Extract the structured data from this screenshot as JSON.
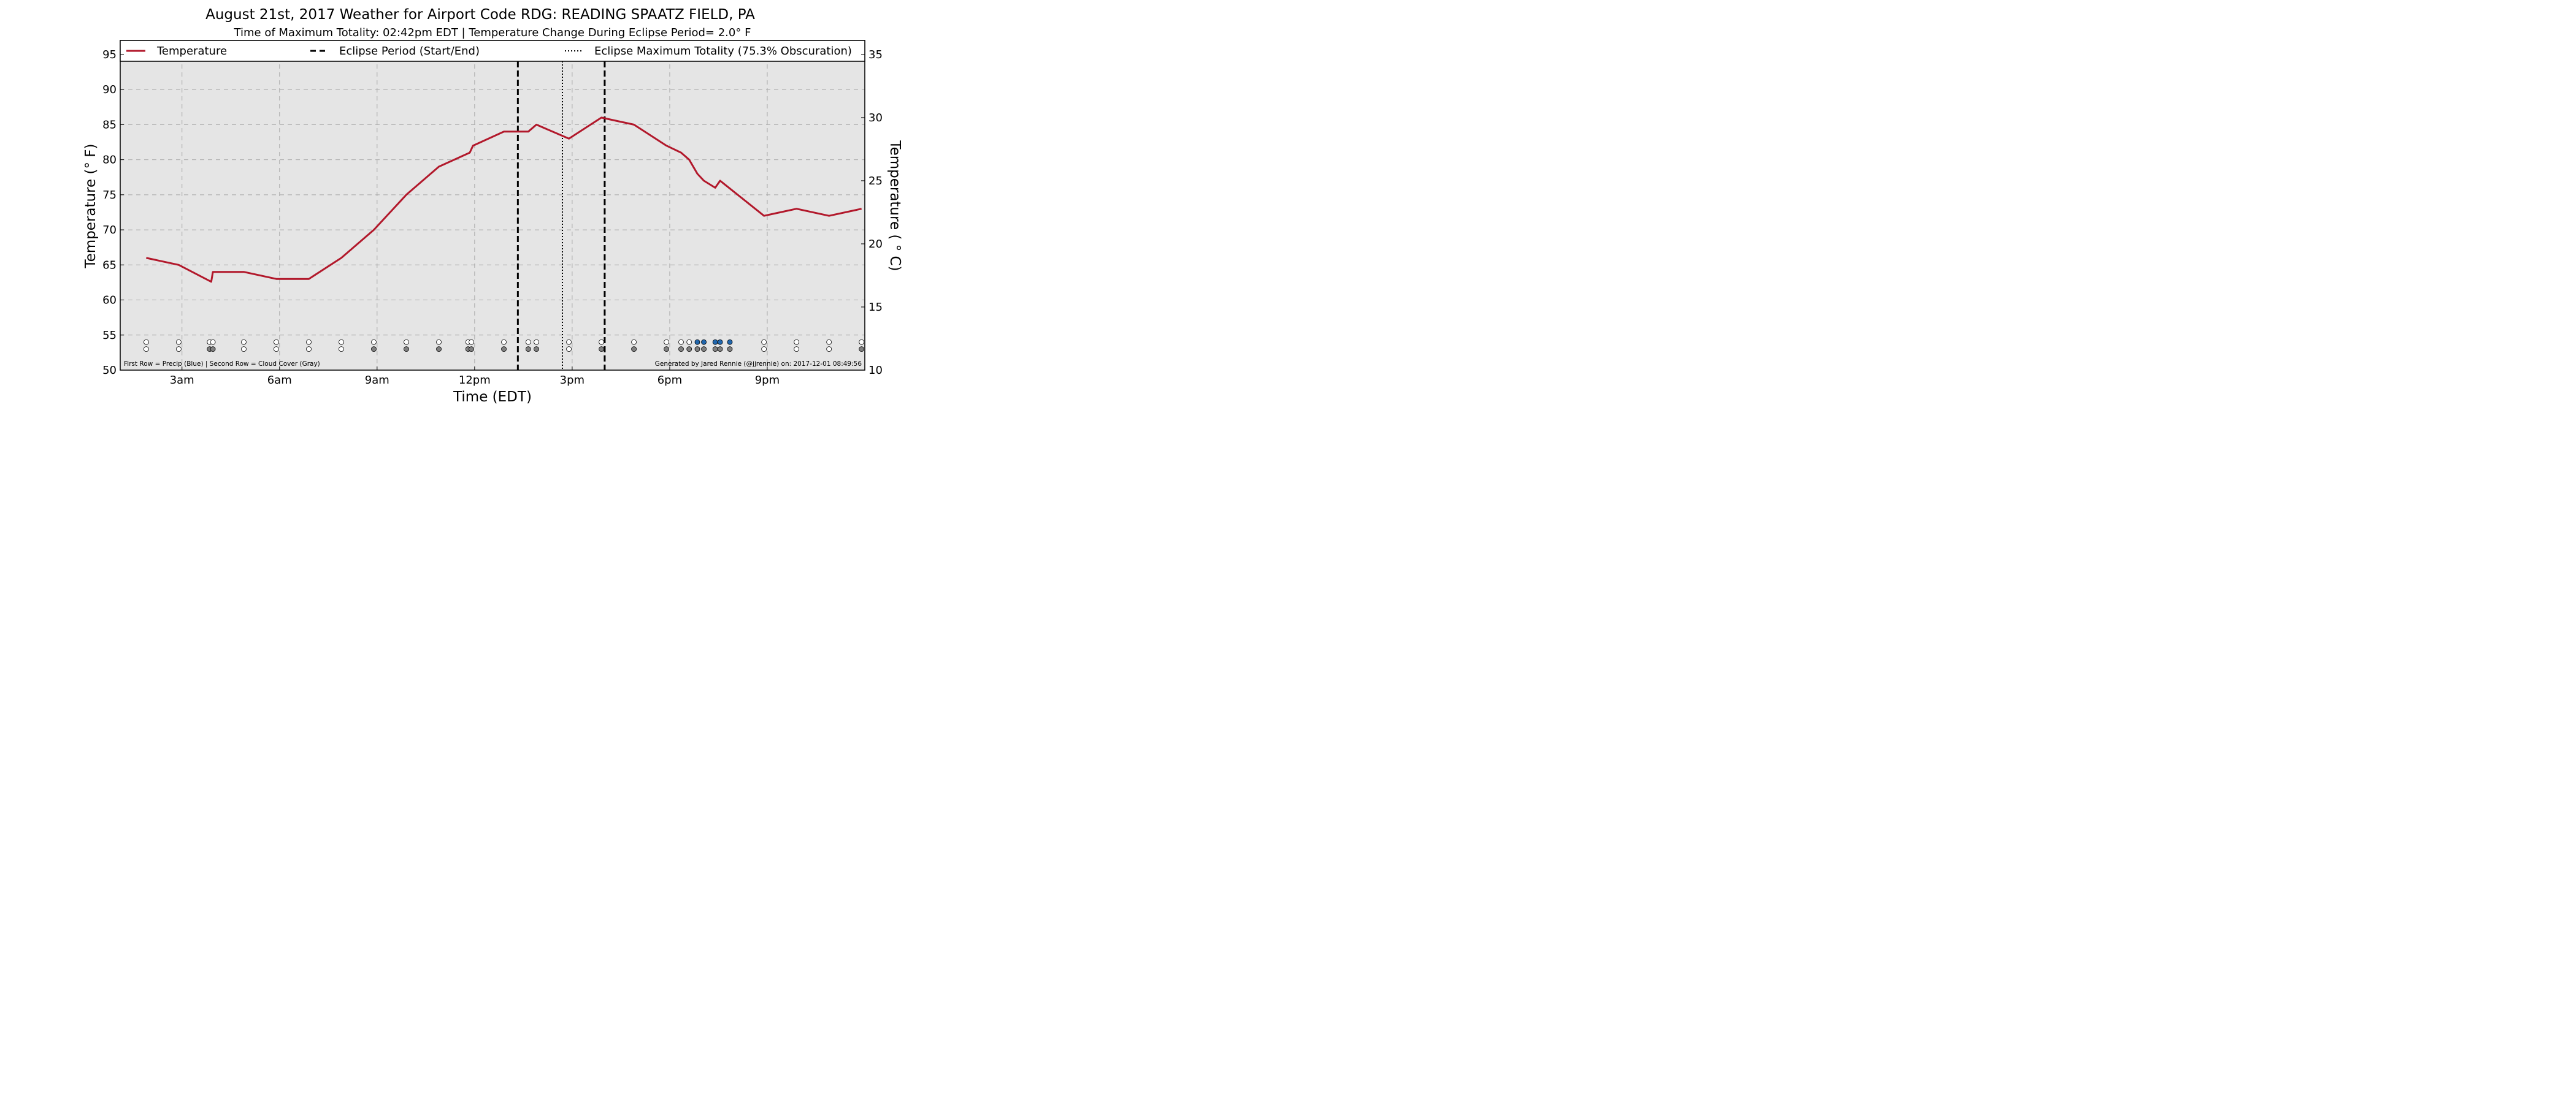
{
  "chart_data": {
    "type": "line",
    "title": "August 21st, 2017 Weather for Airport Code RDG: READING SPAATZ FIELD, PA",
    "subtitle": "Time of Maximum Totality: 02:42pm EDT | Temperature Change During Eclipse Period= 2.0° F",
    "xlabel": "Time (EDT)",
    "ylabel_left": "Temperature (° F)",
    "ylabel_right": "Temperature ( ° C)",
    "xlim": [
      1.1,
      24.0
    ],
    "ylim": [
      50,
      97
    ],
    "ylim_celsius": [
      10,
      36.11
    ],
    "x_ticks": [
      {
        "x": 3,
        "label": "3am"
      },
      {
        "x": 6,
        "label": "6am"
      },
      {
        "x": 9,
        "label": "9am"
      },
      {
        "x": 12,
        "label": "12pm"
      },
      {
        "x": 15,
        "label": "3pm"
      },
      {
        "x": 18,
        "label": "6pm"
      },
      {
        "x": 21,
        "label": "9pm"
      }
    ],
    "y_ticks": [
      50,
      55,
      60,
      65,
      70,
      75,
      80,
      85,
      90,
      95
    ],
    "y_ticks_celsius": [
      10,
      15,
      20,
      25,
      30,
      35
    ],
    "grid": true,
    "legend_placement": "top",
    "legend": [
      {
        "label": "Temperature",
        "style": "solid",
        "color": "#b2182b"
      },
      {
        "label": "Eclipse Period (Start/End)",
        "style": "dashed",
        "color": "#000000"
      },
      {
        "label": "Eclipse Maximum Totality (75.3% Obscuration)",
        "style": "dotted",
        "color": "#000000"
      }
    ],
    "series": [
      {
        "name": "Temperature",
        "color": "#b2182b",
        "points": [
          [
            1.9,
            66
          ],
          [
            2.9,
            65
          ],
          [
            3.9,
            62.6
          ],
          [
            3.95,
            64
          ],
          [
            4.9,
            64
          ],
          [
            5.9,
            63
          ],
          [
            6.9,
            63
          ],
          [
            7.9,
            66
          ],
          [
            8.9,
            70
          ],
          [
            9.9,
            75
          ],
          [
            10.9,
            79
          ],
          [
            11.85,
            81
          ],
          [
            11.95,
            82
          ],
          [
            12.9,
            84
          ],
          [
            13.65,
            84
          ],
          [
            13.9,
            85
          ],
          [
            14.9,
            83
          ],
          [
            15.9,
            86
          ],
          [
            16.9,
            85
          ],
          [
            17.9,
            82
          ],
          [
            18.35,
            81
          ],
          [
            18.6,
            80
          ],
          [
            18.85,
            78
          ],
          [
            19.05,
            77
          ],
          [
            19.4,
            76
          ],
          [
            19.55,
            77
          ],
          [
            20.9,
            72
          ],
          [
            21.9,
            73
          ],
          [
            22.9,
            72
          ],
          [
            23.9,
            73
          ]
        ]
      }
    ],
    "eclipse": {
      "start": 13.33,
      "max": 14.7,
      "end": 16.0,
      "obscuration": "75.3%"
    },
    "observations": {
      "precip_row_y": 54,
      "cloud_row_y": 53,
      "colors": {
        "empty": "#ffffff",
        "precip": "#2166ac",
        "cloud": "#808080"
      },
      "precip": [
        {
          "x": 1.9,
          "v": 0
        },
        {
          "x": 2.9,
          "v": 0
        },
        {
          "x": 3.85,
          "v": 0
        },
        {
          "x": 3.95,
          "v": 0
        },
        {
          "x": 4.9,
          "v": 0
        },
        {
          "x": 5.9,
          "v": 0
        },
        {
          "x": 6.9,
          "v": 0
        },
        {
          "x": 7.9,
          "v": 0
        },
        {
          "x": 8.9,
          "v": 0
        },
        {
          "x": 9.9,
          "v": 0
        },
        {
          "x": 10.9,
          "v": 0
        },
        {
          "x": 11.8,
          "v": 0
        },
        {
          "x": 11.9,
          "v": 0
        },
        {
          "x": 12.9,
          "v": 0
        },
        {
          "x": 13.65,
          "v": 0
        },
        {
          "x": 13.9,
          "v": 0
        },
        {
          "x": 14.9,
          "v": 0
        },
        {
          "x": 15.9,
          "v": 0
        },
        {
          "x": 16.9,
          "v": 0
        },
        {
          "x": 17.9,
          "v": 0
        },
        {
          "x": 18.35,
          "v": 0
        },
        {
          "x": 18.6,
          "v": 0
        },
        {
          "x": 18.85,
          "v": 1
        },
        {
          "x": 19.05,
          "v": 1
        },
        {
          "x": 19.4,
          "v": 1
        },
        {
          "x": 19.55,
          "v": 1
        },
        {
          "x": 19.85,
          "v": 1
        },
        {
          "x": 20.9,
          "v": 0
        },
        {
          "x": 21.9,
          "v": 0
        },
        {
          "x": 22.9,
          "v": 0
        },
        {
          "x": 23.9,
          "v": 0
        }
      ],
      "cloud": [
        {
          "x": 1.9,
          "v": 0
        },
        {
          "x": 2.9,
          "v": 0
        },
        {
          "x": 3.85,
          "v": 1
        },
        {
          "x": 3.95,
          "v": 1
        },
        {
          "x": 4.9,
          "v": 0
        },
        {
          "x": 5.9,
          "v": 0
        },
        {
          "x": 6.9,
          "v": 0
        },
        {
          "x": 7.9,
          "v": 0
        },
        {
          "x": 8.9,
          "v": 1
        },
        {
          "x": 9.9,
          "v": 1
        },
        {
          "x": 10.9,
          "v": 1
        },
        {
          "x": 11.8,
          "v": 1
        },
        {
          "x": 11.9,
          "v": 1
        },
        {
          "x": 12.9,
          "v": 1
        },
        {
          "x": 13.65,
          "v": 1
        },
        {
          "x": 13.9,
          "v": 1
        },
        {
          "x": 14.9,
          "v": 0
        },
        {
          "x": 15.9,
          "v": 1
        },
        {
          "x": 16.9,
          "v": 1
        },
        {
          "x": 17.9,
          "v": 1
        },
        {
          "x": 18.35,
          "v": 1
        },
        {
          "x": 18.6,
          "v": 1
        },
        {
          "x": 18.85,
          "v": 1
        },
        {
          "x": 19.05,
          "v": 1
        },
        {
          "x": 19.4,
          "v": 1
        },
        {
          "x": 19.55,
          "v": 1
        },
        {
          "x": 19.85,
          "v": 1
        },
        {
          "x": 20.9,
          "v": 0
        },
        {
          "x": 21.9,
          "v": 0
        },
        {
          "x": 22.9,
          "v": 0
        },
        {
          "x": 23.9,
          "v": 1
        }
      ]
    },
    "notes": {
      "left": "First Row = Precip (Blue) | Second Row = Cloud Cover (Gray)",
      "right": "Generated by Jared Rennie (@jjrennie) on: 2017-12-01 08:49:56"
    }
  }
}
